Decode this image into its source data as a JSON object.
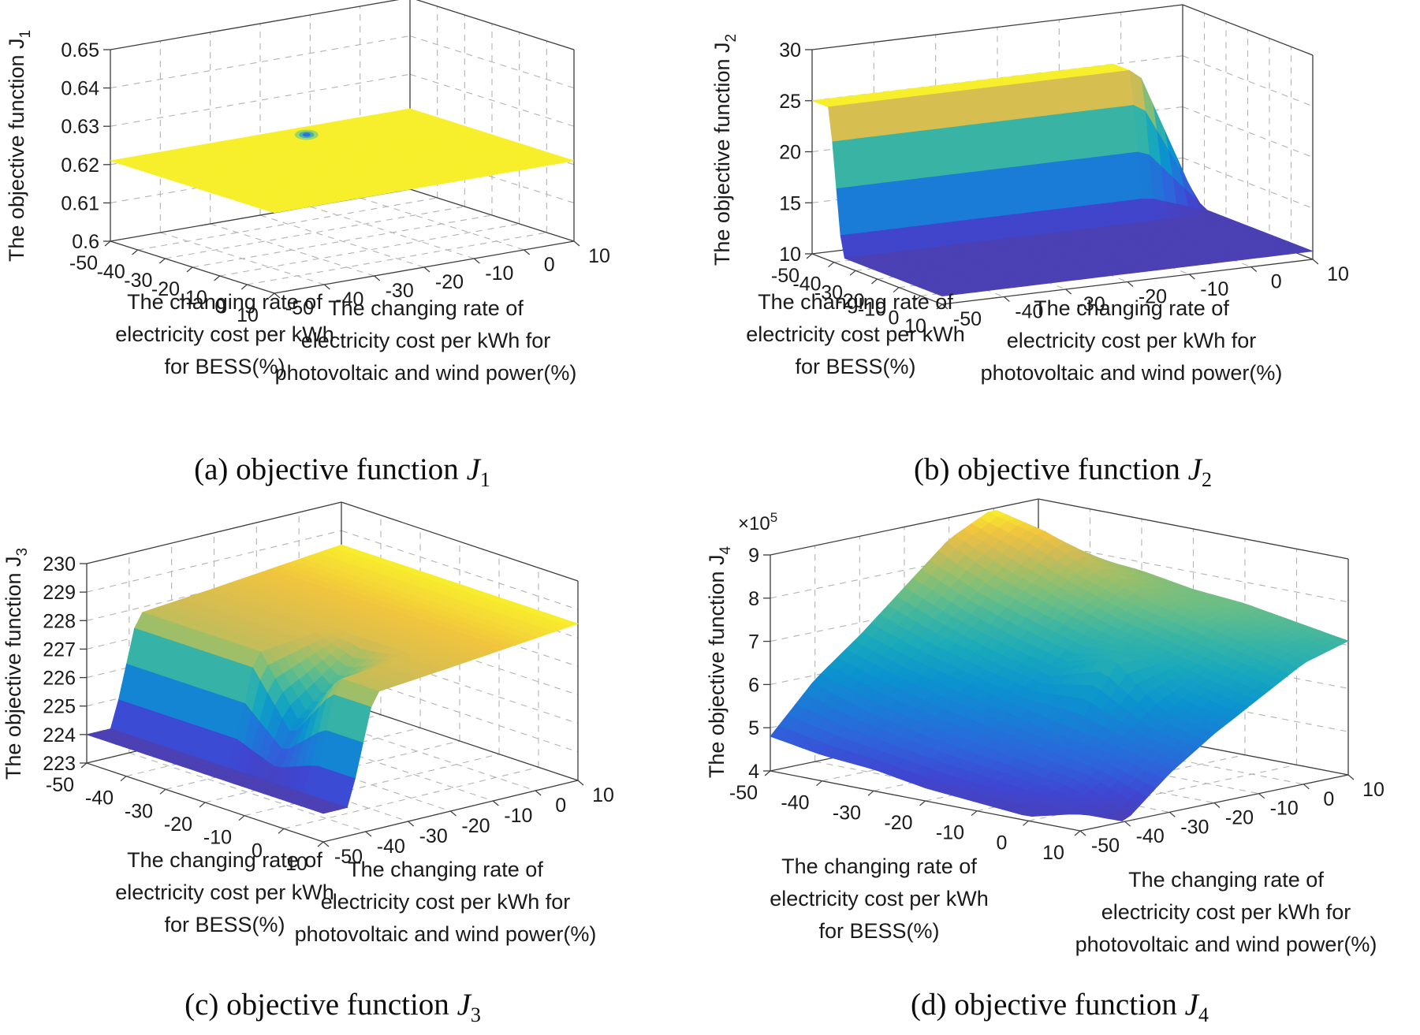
{
  "figure": {
    "captions": [
      {
        "prefix": "(a) objective function ",
        "var": "J",
        "sub": "1"
      },
      {
        "prefix": "(b) objective function ",
        "var": "J",
        "sub": "2"
      },
      {
        "prefix": "(c) objective function ",
        "var": "J",
        "sub": "3"
      },
      {
        "prefix": "(d) objective function ",
        "var": "J",
        "sub": "4"
      }
    ],
    "axis_labels": {
      "bess": [
        "The changing rate of",
        "electricity cost per kWh",
        "for BESS(%)"
      ],
      "pv": [
        "The changing rate of",
        "electricity cost per kWh for",
        "photovoltaic and wind power(%)"
      ]
    },
    "colors": {
      "background": "#ffffff",
      "axis_line": "#3c3c3c",
      "grid_line": "#b3b3b3",
      "text": "#1a1a1a",
      "colormap_name": "parula",
      "parula_stops": [
        "#4b40b4",
        "#3f46d2",
        "#2e64db",
        "#1a7cd6",
        "#0b93cf",
        "#18a8bd",
        "#3bb5a3",
        "#6cbe85",
        "#9cbf69",
        "#cfbc55",
        "#f1c43e",
        "#f8ef2c"
      ]
    }
  },
  "chart_data": [
    {
      "type": "surface",
      "id": "a",
      "zlabel": "The objective function J",
      "zlabel_sub": "1",
      "xlabel": "The changing rate of electricity cost per kWh for photovoltaic and wind power(%)",
      "ylabel": "The changing rate of electricity cost per kWh for BESS(%)",
      "x_ticks": [
        -50,
        -40,
        -30,
        -20,
        -10,
        0,
        10
      ],
      "y_ticks": [
        -50,
        -40,
        -30,
        -20,
        -10,
        0,
        10
      ],
      "zlim": [
        0.6,
        0.65
      ],
      "z_ticks": [
        0.6,
        0.61,
        0.62,
        0.63,
        0.64,
        0.65
      ],
      "z_tick_labels": [
        "0.6",
        "0.61",
        "0.62",
        "0.63",
        "0.64",
        "0.65"
      ],
      "x": [
        -50,
        -40,
        -30,
        -20,
        -10,
        0,
        10
      ],
      "y": [
        -50,
        -40,
        -30,
        -20,
        -10,
        0,
        10
      ],
      "z": [
        [
          0.621,
          0.621,
          0.621,
          0.621,
          0.621,
          0.621,
          0.621
        ],
        [
          0.621,
          0.621,
          0.621,
          0.621,
          0.621,
          0.621,
          0.621
        ],
        [
          0.621,
          0.621,
          0.621,
          0.621,
          0.621,
          0.621,
          0.621
        ],
        [
          0.621,
          0.621,
          0.621,
          0.621,
          0.621,
          0.621,
          0.621
        ],
        [
          0.621,
          0.621,
          0.621,
          0.621,
          0.621,
          0.621,
          0.621
        ],
        [
          0.621,
          0.621,
          0.621,
          0.621,
          0.621,
          0.621,
          0.621
        ],
        [
          0.621,
          0.621,
          0.621,
          0.621,
          0.621,
          0.621,
          0.621
        ]
      ],
      "features": {
        "flat_level": 0.621,
        "dip": {
          "x": -14,
          "y": -44,
          "z": 0.6175
        }
      }
    },
    {
      "type": "surface",
      "id": "b",
      "zlabel": "The objective function J",
      "zlabel_sub": "2",
      "xlabel": "The changing rate of electricity cost per kWh for photovoltaic and wind power(%)",
      "ylabel": "The changing rate of electricity cost per kWh for BESS(%)",
      "x_ticks": [
        -50,
        -40,
        -30,
        -20,
        -10,
        0,
        10
      ],
      "y_ticks": [
        -50,
        -40,
        -30,
        -20,
        -10,
        0,
        10
      ],
      "zlim": [
        10,
        30
      ],
      "z_ticks": [
        10,
        15,
        20,
        25,
        30
      ],
      "z_tick_labels": [
        "10",
        "15",
        "20",
        "25",
        "30"
      ],
      "x": [
        -50,
        -40,
        -30,
        -20,
        -10,
        0,
        10
      ],
      "y": [
        -50,
        -42,
        -36,
        -20,
        -10,
        0,
        10
      ],
      "z": [
        [
          25,
          25,
          25,
          25,
          25,
          25,
          10.8
        ],
        [
          25,
          25,
          25,
          25,
          25,
          25,
          10.8
        ],
        [
          10.8,
          10.8,
          10.8,
          10.8,
          10.8,
          10.8,
          10.8
        ],
        [
          10.8,
          10.8,
          10.8,
          10.8,
          10.8,
          10.8,
          10.8
        ],
        [
          10.8,
          10.8,
          10.8,
          10.8,
          10.8,
          10.8,
          10.8
        ],
        [
          10.8,
          10.8,
          10.8,
          10.8,
          10.8,
          10.8,
          10.8
        ],
        [
          10.8,
          10.8,
          10.8,
          10.8,
          10.8,
          10.8,
          10.8
        ]
      ],
      "features": {
        "plateau_level": 25,
        "floor_level": 10.8,
        "plateau_region": "BESS <= -42 and PV <= 0"
      }
    },
    {
      "type": "surface",
      "id": "c",
      "zlabel": "The objective function J",
      "zlabel_sub": "3",
      "xlabel": "The changing rate of electricity cost per kWh for photovoltaic and wind power(%)",
      "ylabel": "The changing rate of electricity cost per kWh for BESS(%)",
      "x_ticks": [
        -50,
        -40,
        -30,
        -20,
        -10,
        0,
        10
      ],
      "y_ticks": [
        -50,
        -40,
        -30,
        -20,
        -10,
        0,
        10
      ],
      "zlim": [
        223,
        230
      ],
      "z_ticks": [
        223,
        224,
        225,
        226,
        227,
        228,
        229,
        230
      ],
      "z_tick_labels": [
        "223",
        "224",
        "225",
        "226",
        "227",
        "228",
        "229",
        "230"
      ],
      "x": [
        -50,
        -44,
        -38,
        -20,
        -10,
        0,
        10
      ],
      "y": [
        -50,
        -40,
        -30,
        -20,
        -10,
        0,
        10
      ],
      "z": [
        [
          224,
          224,
          227.8,
          228.05,
          228.2,
          228.35,
          228.5
        ],
        [
          224,
          224,
          227.8,
          228.05,
          228.2,
          228.35,
          228.5
        ],
        [
          224,
          224,
          227.8,
          228.05,
          228.2,
          228.35,
          228.5
        ],
        [
          224,
          224,
          227.8,
          228.05,
          228.2,
          228.35,
          228.5
        ],
        [
          224,
          224,
          225.6,
          228.05,
          228.2,
          228.35,
          228.5
        ],
        [
          224,
          224,
          227.8,
          228.05,
          228.2,
          228.35,
          228.5
        ],
        [
          224,
          224,
          227.8,
          228.05,
          228.2,
          228.35,
          228.5
        ]
      ],
      "features": {
        "floor_level": 224,
        "floor_region": "PV <= -44",
        "plateau_range": [
          227.8,
          228.5
        ],
        "notch": {
          "x": -38,
          "y": -10,
          "z": 225.6
        }
      }
    },
    {
      "type": "surface",
      "id": "d",
      "zlabel": "The objective function J",
      "zlabel_sub": "4",
      "z_scale_note": "×10^5",
      "xlabel": "The changing rate of electricity cost per kWh for photovoltaic and wind power(%)",
      "ylabel": "The changing rate of electricity cost per kWh for BESS(%)",
      "x_ticks": [
        -50,
        -40,
        -30,
        -20,
        -10,
        0,
        10
      ],
      "y_ticks": [
        -50,
        -40,
        -30,
        -20,
        -10,
        0,
        10
      ],
      "zlim": [
        4,
        9
      ],
      "z_ticks": [
        4,
        5,
        6,
        7,
        8,
        9
      ],
      "z_tick_labels": [
        "4",
        "5",
        "6",
        "7",
        "8",
        "9"
      ],
      "x": [
        -50,
        -40,
        -30,
        -20,
        -10,
        0,
        10
      ],
      "y": [
        -50,
        -40,
        -30,
        -20,
        -10,
        0,
        10
      ],
      "z": [
        [
          4.8,
          5.9,
          6.7,
          7.6,
          8.5,
          9.0,
          8.0
        ],
        [
          4.6,
          5.5,
          6.3,
          7.1,
          7.9,
          8.7,
          7.9
        ],
        [
          4.5,
          5.2,
          6.0,
          6.7,
          7.5,
          8.1,
          7.8
        ],
        [
          4.3,
          5.0,
          5.7,
          6.4,
          7.1,
          7.7,
          7.6
        ],
        [
          4.2,
          4.8,
          5.4,
          6.9,
          6.8,
          7.4,
          7.5
        ],
        [
          4.1,
          4.6,
          5.2,
          5.9,
          6.5,
          7.1,
          7.3
        ],
        [
          4.4,
          4.0,
          4.9,
          5.6,
          6.2,
          6.8,
          7.1
        ]
      ],
      "features": {
        "plane_range": [
          4.0,
          9.0
        ],
        "spike": {
          "x": -20,
          "y": -10,
          "z": 6.9
        },
        "front_notch": {
          "x": -40,
          "y": 10,
          "z": 4.0
        }
      }
    }
  ]
}
